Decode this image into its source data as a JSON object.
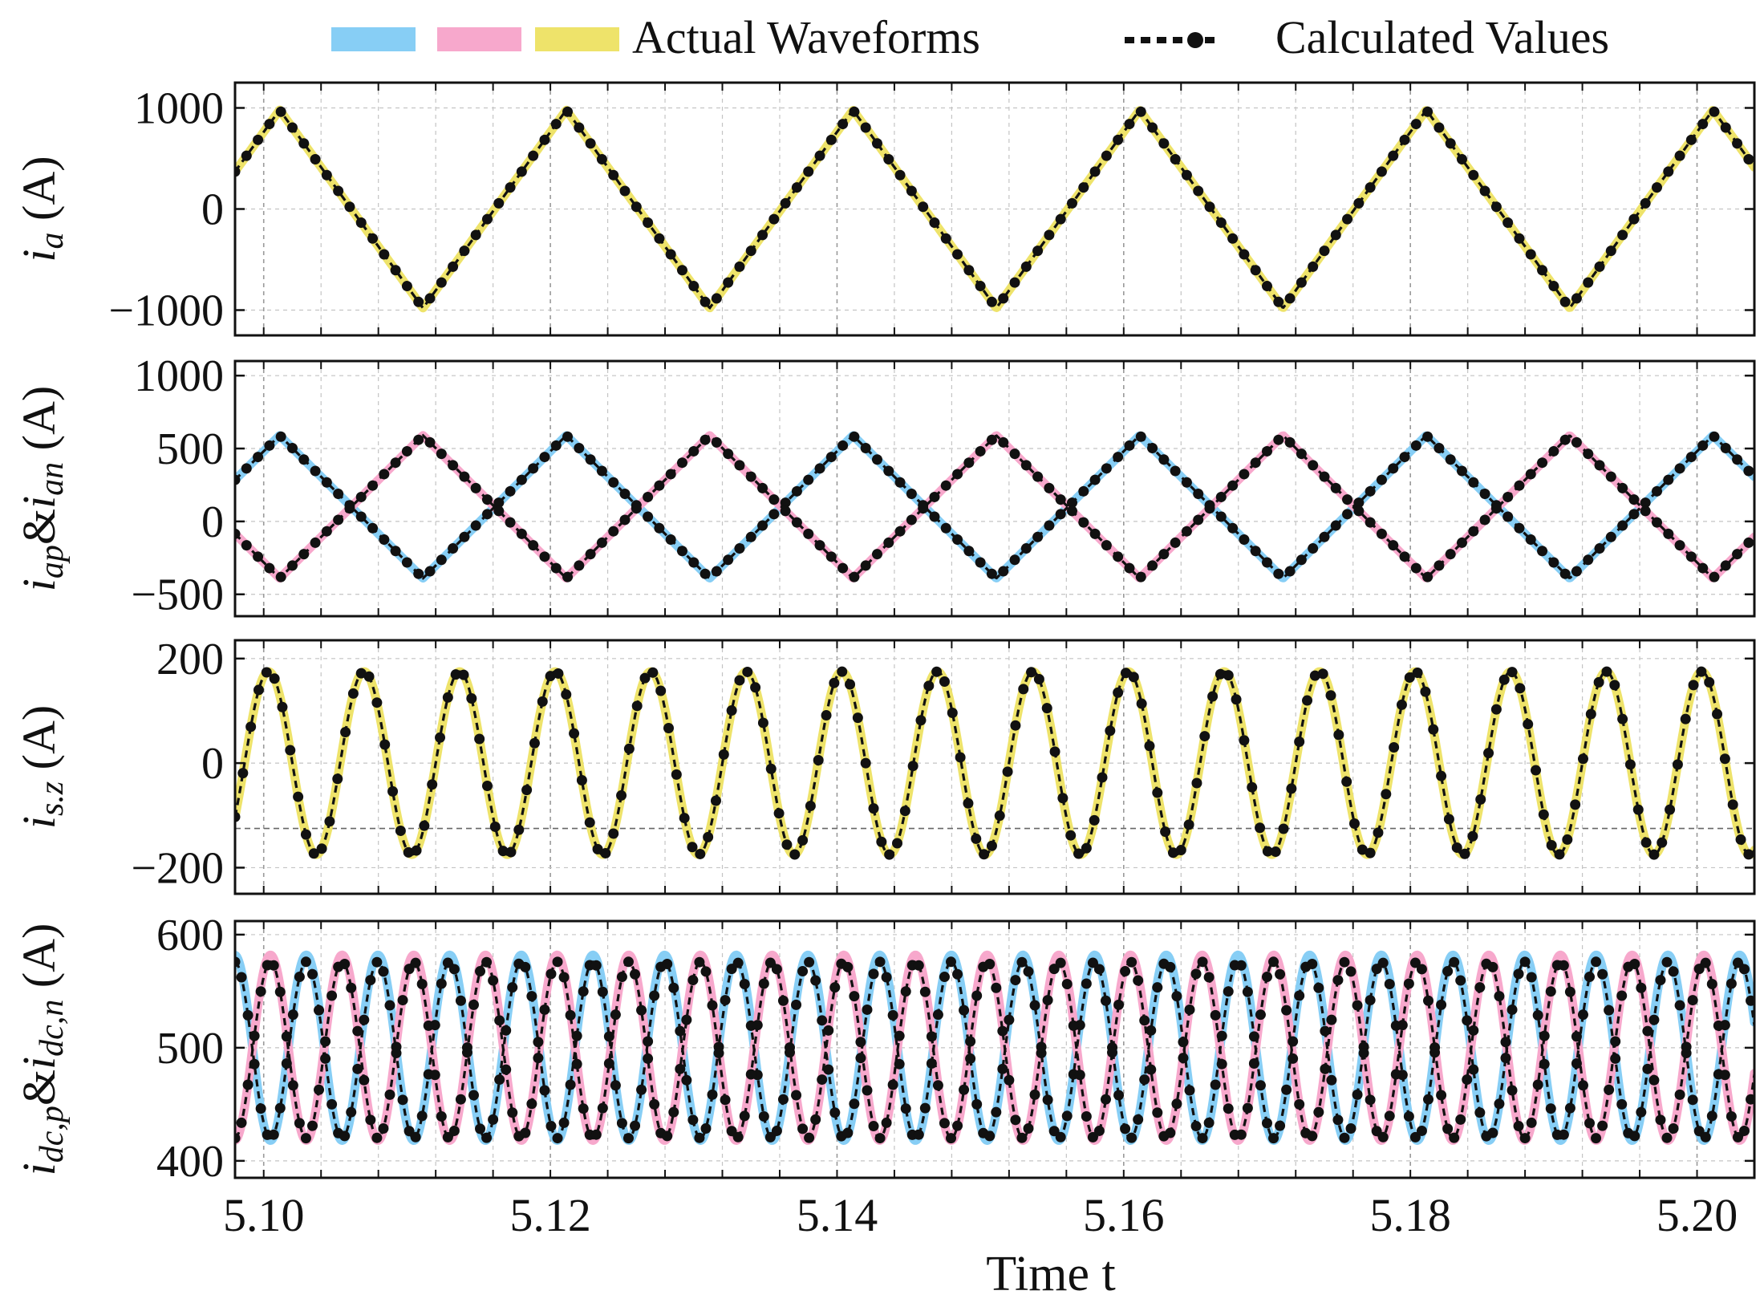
{
  "chart_data": {
    "type": "line",
    "x_range": [
      5.098,
      5.204
    ],
    "xticks": [
      {
        "v": 5.1,
        "label": "5.10"
      },
      {
        "v": 5.12,
        "label": "5.12"
      },
      {
        "v": 5.14,
        "label": "5.14"
      },
      {
        "v": 5.16,
        "label": "5.16"
      },
      {
        "v": 5.18,
        "label": "5.18"
      },
      {
        "v": 5.2,
        "label": "5.20"
      }
    ],
    "xlabel": "Time t",
    "legend": {
      "actual_label": "Actual Waveforms",
      "calculated_label": "Calculated Values",
      "actual_colors": [
        "#87CEF5",
        "#F7A8CC",
        "#EEE36A"
      ]
    },
    "colors": {
      "blue": "#87CEF5",
      "pink": "#F7A8CC",
      "yellow": "#EEE36A",
      "calc": "#111111"
    },
    "panels": [
      {
        "id": "ia",
        "ylabel": "i_a (A)",
        "ylabel_parts": [
          {
            "t": "i",
            "s": "main"
          },
          {
            "t": "a",
            "s": "sub"
          },
          {
            "t": " (A)",
            "s": "plain"
          }
        ],
        "ylim": [
          -1250,
          1250
        ],
        "yticks": [
          {
            "v": 1000,
            "label": "1000"
          },
          {
            "v": 0,
            "label": "0"
          },
          {
            "v": -1000,
            "label": "−1000"
          }
        ],
        "dashed_hline": null,
        "series": [
          {
            "name": "i_a actual",
            "kind": "actual",
            "color": "yellow",
            "offset": 0,
            "amplitude": 980,
            "frequency_hz": 50,
            "phase_deg": 70,
            "shape": "triangle"
          },
          {
            "name": "i_a calculated",
            "kind": "calculated",
            "offset": 0,
            "amplitude": 980,
            "frequency_hz": 50,
            "phase_deg": 70,
            "shape": "triangle",
            "marker_step": 0.0008
          }
        ]
      },
      {
        "id": "iap_ian",
        "ylabel": "i_ap & i_an (A)",
        "ylabel_parts": [
          {
            "t": "i",
            "s": "main"
          },
          {
            "t": "ap",
            "s": "sub"
          },
          {
            "t": "&",
            "s": "plain"
          },
          {
            "t": "i",
            "s": "main"
          },
          {
            "t": "an",
            "s": "sub"
          },
          {
            "t": " (A)",
            "s": "plain"
          }
        ],
        "ylim": [
          -650,
          1100
        ],
        "yticks": [
          {
            "v": 1000,
            "label": "1000"
          },
          {
            "v": 500,
            "label": "500"
          },
          {
            "v": 0,
            "label": "0"
          },
          {
            "v": -500,
            "label": "−500"
          }
        ],
        "dashed_hline": null,
        "series": [
          {
            "name": "i_ap actual",
            "kind": "actual",
            "color": "blue",
            "offset": 100,
            "amplitude": 490,
            "frequency_hz": 50,
            "phase_deg": 70,
            "shape": "triangle"
          },
          {
            "name": "i_an actual",
            "kind": "actual",
            "color": "pink",
            "offset": 100,
            "amplitude": 490,
            "frequency_hz": 50,
            "phase_deg": 250,
            "shape": "triangle"
          },
          {
            "name": "i_ap calculated",
            "kind": "calculated",
            "offset": 100,
            "amplitude": 490,
            "frequency_hz": 50,
            "phase_deg": 70,
            "shape": "triangle",
            "marker_step": 0.0008
          },
          {
            "name": "i_an calculated",
            "kind": "calculated",
            "offset": 100,
            "amplitude": 490,
            "frequency_hz": 50,
            "phase_deg": 250,
            "shape": "triangle",
            "marker_step": 0.0008
          }
        ]
      },
      {
        "id": "isz",
        "ylabel": "i_s.z (A)",
        "ylabel_parts": [
          {
            "t": "i",
            "s": "main"
          },
          {
            "t": "s.z",
            "s": "sub"
          },
          {
            "t": " (A)",
            "s": "plain"
          }
        ],
        "ylim": [
          -250,
          235
        ],
        "yticks": [
          {
            "v": 200,
            "label": "200"
          },
          {
            "v": 0,
            "label": "0"
          },
          {
            "v": -200,
            "label": "−200"
          }
        ],
        "dashed_hline": -125,
        "series": [
          {
            "name": "i_s.z actual",
            "kind": "actual",
            "color": "yellow",
            "offset": 0,
            "amplitude": 175,
            "frequency_hz": 150,
            "phase_deg": 72,
            "shape": "sine"
          },
          {
            "name": "i_s.z calculated",
            "kind": "calculated",
            "offset": 0,
            "amplitude": 175,
            "frequency_hz": 150,
            "phase_deg": 72,
            "shape": "sine",
            "marker_step": 0.00055
          }
        ]
      },
      {
        "id": "idc",
        "ylabel": "i_dc,p & i_dc,n (A)",
        "ylabel_parts": [
          {
            "t": "i",
            "s": "main"
          },
          {
            "t": "dc,p",
            "s": "sub"
          },
          {
            "t": "&",
            "s": "plain"
          },
          {
            "t": "i",
            "s": "main"
          },
          {
            "t": "dc,n",
            "s": "sub"
          },
          {
            "t": " (A)",
            "s": "plain"
          }
        ],
        "ylim": [
          385,
          612
        ],
        "yticks": [
          {
            "v": 600,
            "label": "600"
          },
          {
            "v": 500,
            "label": "500"
          },
          {
            "v": 400,
            "label": "400"
          }
        ],
        "dashed_hline": null,
        "series": [
          {
            "name": "i_dc,p actual",
            "kind": "actual",
            "color": "blue",
            "offset": 500,
            "amplitude": 82,
            "frequency_hz": 200,
            "phase_deg": 236,
            "shape": "sine"
          },
          {
            "name": "i_dc,n actual",
            "kind": "actual",
            "color": "pink",
            "offset": 500,
            "amplitude": 82,
            "frequency_hz": 200,
            "phase_deg": 56,
            "shape": "sine"
          },
          {
            "name": "i_dc,p calculated",
            "kind": "calculated",
            "offset": 498,
            "amplitude": 78,
            "frequency_hz": 200,
            "phase_deg": 236,
            "shape": "sine",
            "marker_step": 0.00045
          },
          {
            "name": "i_dc,n calculated",
            "kind": "calculated",
            "offset": 498,
            "amplitude": 78,
            "frequency_hz": 200,
            "phase_deg": 56,
            "shape": "sine",
            "marker_step": 0.00045
          }
        ]
      }
    ]
  }
}
